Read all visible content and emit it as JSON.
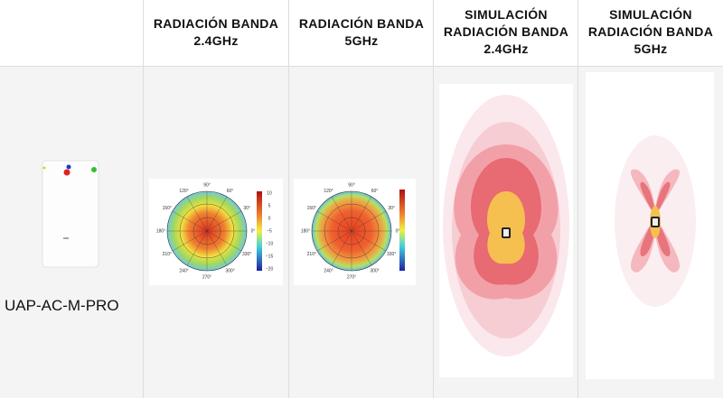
{
  "table": {
    "headers": [
      {
        "lines": []
      },
      {
        "lines": [
          "RADIACIÓN BANDA",
          "2.4GHz"
        ]
      },
      {
        "lines": [
          "RADIACIÓN BANDA",
          "5GHz"
        ]
      },
      {
        "lines": [
          "SIMULACIÓN",
          "RADIACIÓN BANDA",
          "2.4GHz"
        ]
      },
      {
        "lines": [
          "SIMULACIÓN",
          "RADIACIÓN BANDA",
          "5GHz"
        ]
      }
    ],
    "rows": [
      {
        "product": "UAP-AC-M-PRO"
      }
    ]
  },
  "polar_plots": [
    {
      "angle_labels": [
        "0°",
        "30°",
        "60°",
        "90°",
        "120°",
        "150°",
        "180°",
        "210°",
        "240°",
        "270°",
        "300°",
        "330°"
      ],
      "colorbar_ticks": [
        "10",
        "5",
        "0",
        "−5",
        "−10",
        "−15",
        "−20"
      ]
    },
    {
      "angle_labels": [
        "0°",
        "30°",
        "60°",
        "90°",
        "120°",
        "150°",
        "180°",
        "210°",
        "240°",
        "270°",
        "300°",
        "330°"
      ]
    }
  ]
}
